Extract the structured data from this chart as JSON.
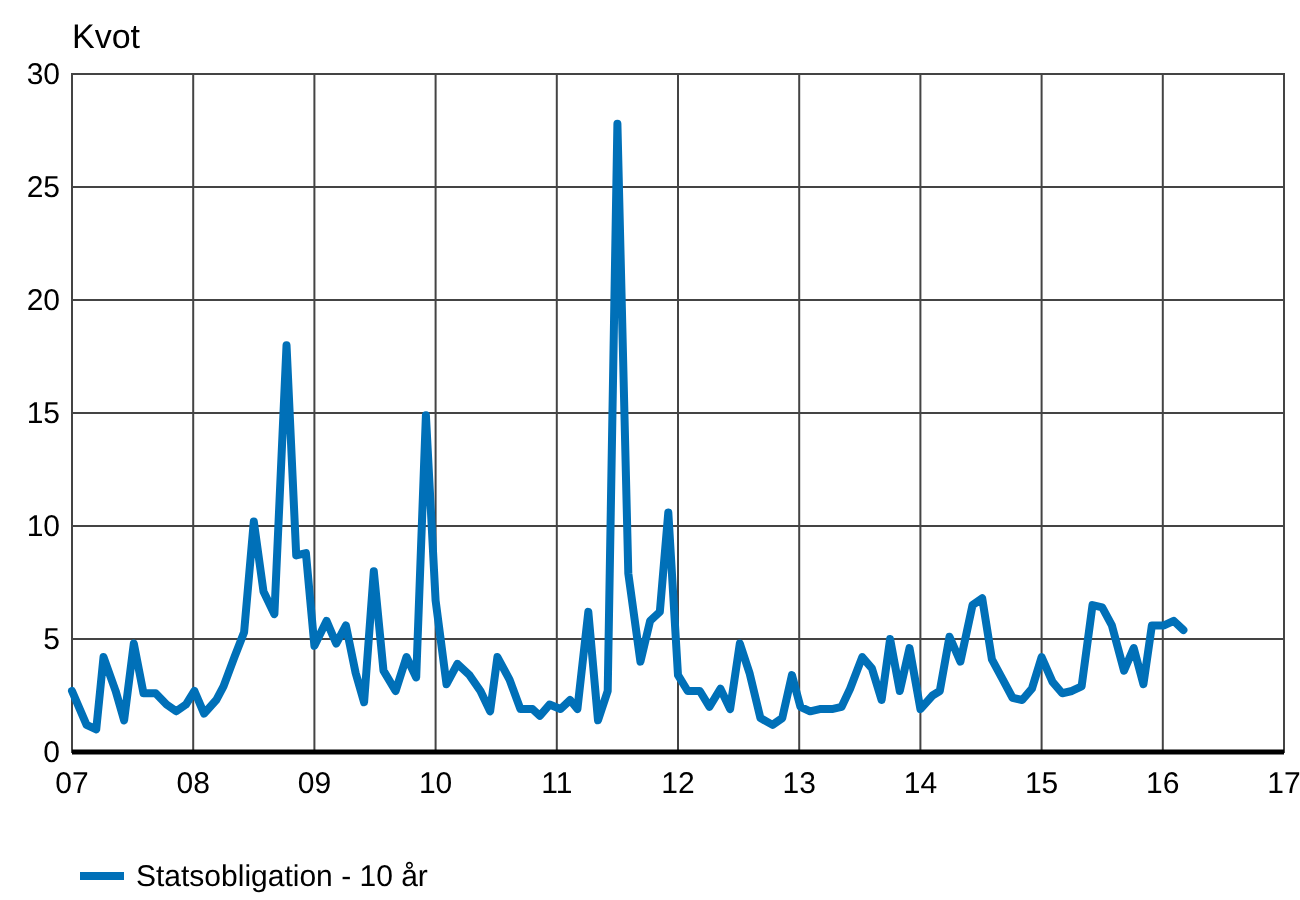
{
  "chart_data": {
    "type": "line",
    "ylabel": "Kvot",
    "xlim": [
      7,
      17
    ],
    "xticks": [
      {
        "value": 7,
        "label": "07"
      },
      {
        "value": 8,
        "label": "08"
      },
      {
        "value": 9,
        "label": "09"
      },
      {
        "value": 10,
        "label": "10"
      },
      {
        "value": 11,
        "label": "11"
      },
      {
        "value": 12,
        "label": "12"
      },
      {
        "value": 13,
        "label": "13"
      },
      {
        "value": 14,
        "label": "14"
      },
      {
        "value": 15,
        "label": "15"
      },
      {
        "value": 16,
        "label": "16"
      },
      {
        "value": 17,
        "label": "17"
      }
    ],
    "ylim": [
      0,
      30
    ],
    "yticks": [
      0,
      5,
      10,
      15,
      20,
      25,
      30
    ],
    "grid": true,
    "legend": "bottom",
    "line_style": "solid",
    "series": [
      {
        "name": "Statsobligation - 10 år",
        "color": "#0070b8",
        "x": [
          7.0,
          7.12,
          7.2,
          7.26,
          7.36,
          7.43,
          7.51,
          7.59,
          7.69,
          7.78,
          7.86,
          7.94,
          8.01,
          8.09,
          8.19,
          8.25,
          8.34,
          8.42,
          8.5,
          8.58,
          8.67,
          8.77,
          8.85,
          8.93,
          9.0,
          9.1,
          9.18,
          9.26,
          9.34,
          9.41,
          9.49,
          9.57,
          9.67,
          9.76,
          9.84,
          9.92,
          10.0,
          10.09,
          10.18,
          10.28,
          10.37,
          10.45,
          10.51,
          10.61,
          10.7,
          10.8,
          10.86,
          10.94,
          11.03,
          11.11,
          11.17,
          11.26,
          11.34,
          11.42,
          11.5,
          11.59,
          11.69,
          11.77,
          11.85,
          11.92,
          12.0,
          12.08,
          12.18,
          12.26,
          12.35,
          12.43,
          12.51,
          12.59,
          12.68,
          12.78,
          12.86,
          12.94,
          13.01,
          13.09,
          13.17,
          13.27,
          13.35,
          13.42,
          13.52,
          13.6,
          13.68,
          13.75,
          13.83,
          13.91,
          14.0,
          14.1,
          14.16,
          14.24,
          14.33,
          14.43,
          14.51,
          14.59,
          14.67,
          14.76,
          14.84,
          14.92,
          15.0,
          15.09,
          15.17,
          15.25,
          15.33,
          15.42,
          15.5,
          15.58,
          15.68,
          15.76,
          15.84,
          15.91,
          16.01,
          16.09,
          16.17
        ],
        "values": [
          2.7,
          1.2,
          1.0,
          4.2,
          2.7,
          1.4,
          4.8,
          2.6,
          2.6,
          2.1,
          1.8,
          2.1,
          2.7,
          1.7,
          2.3,
          2.9,
          4.2,
          5.3,
          10.2,
          7.1,
          6.1,
          18.0,
          8.7,
          8.8,
          4.7,
          5.8,
          4.8,
          5.6,
          3.5,
          2.2,
          8.0,
          3.6,
          2.7,
          4.2,
          3.3,
          14.9,
          6.7,
          3.0,
          3.9,
          3.4,
          2.7,
          1.8,
          4.2,
          3.2,
          1.9,
          1.9,
          1.6,
          2.1,
          1.9,
          2.3,
          1.9,
          6.2,
          1.4,
          2.7,
          27.8,
          7.9,
          4.0,
          5.8,
          6.2,
          10.6,
          3.4,
          2.7,
          2.7,
          2.0,
          2.8,
          1.9,
          4.8,
          3.5,
          1.5,
          1.2,
          1.5,
          3.4,
          2.0,
          1.8,
          1.9,
          1.9,
          2.0,
          2.8,
          4.2,
          3.7,
          2.3,
          5.0,
          2.7,
          4.6,
          1.9,
          2.5,
          2.7,
          5.1,
          4.0,
          6.5,
          6.8,
          4.1,
          3.3,
          2.4,
          2.3,
          2.8,
          4.2,
          3.1,
          2.6,
          2.7,
          2.9,
          6.5,
          6.4,
          5.6,
          3.6,
          4.6,
          3.0,
          5.6,
          5.6,
          5.8,
          5.4
        ]
      }
    ]
  }
}
